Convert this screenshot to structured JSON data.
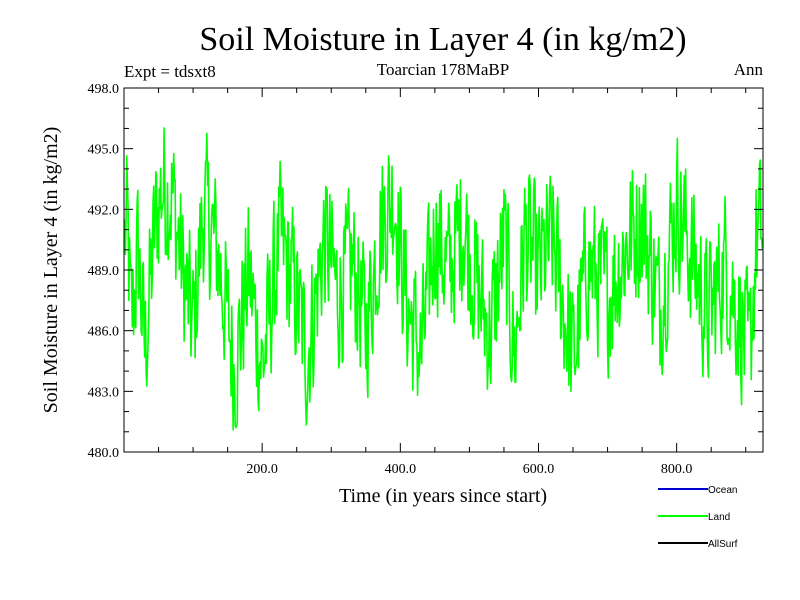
{
  "chart_data": {
    "type": "line",
    "title": "Soil Moisture in Layer 4 (in kg/m2)",
    "subtitle_left": "Expt = tdsxt8",
    "subtitle_center": "Toarcian 178MaBP",
    "subtitle_right": "Ann",
    "xlabel": "Time (in years since start)",
    "ylabel": "Soil Moisture in Layer 4 (in kg/m2)",
    "xlim": [
      0,
      925
    ],
    "ylim": [
      480.0,
      498.0
    ],
    "x_ticks": [
      200,
      400,
      600,
      800
    ],
    "x_tick_labels": [
      "200.0",
      "400.0",
      "600.0",
      "800.0"
    ],
    "y_ticks": [
      480,
      483,
      486,
      489,
      492,
      495,
      498
    ],
    "y_tick_labels": [
      "480.0",
      "483.0",
      "486.0",
      "489.0",
      "492.0",
      "495.0",
      "498.0"
    ],
    "legend": [
      {
        "name": "Ocean",
        "color": "#0000cc"
      },
      {
        "name": "Land",
        "color": "#00ff00"
      },
      {
        "name": "AllSurf",
        "color": "#000000"
      }
    ],
    "series": [
      {
        "name": "Land",
        "color": "#00ff00",
        "x_start": 1,
        "x_step": 1,
        "count": 924,
        "mean": 488.6,
        "min": 480.5,
        "max": 497.0,
        "anchor_points": [
          {
            "x": 5,
            "y": 493.0
          },
          {
            "x": 10,
            "y": 484.0
          },
          {
            "x": 20,
            "y": 491.0
          },
          {
            "x": 30,
            "y": 482.0
          },
          {
            "x": 45,
            "y": 493.5
          },
          {
            "x": 55,
            "y": 497.0
          },
          {
            "x": 70,
            "y": 496.0
          },
          {
            "x": 85,
            "y": 489.0
          },
          {
            "x": 100,
            "y": 484.0
          },
          {
            "x": 115,
            "y": 495.0
          },
          {
            "x": 135,
            "y": 491.0
          },
          {
            "x": 160,
            "y": 480.5
          },
          {
            "x": 180,
            "y": 489.0
          },
          {
            "x": 200,
            "y": 480.5
          },
          {
            "x": 225,
            "y": 492.0
          },
          {
            "x": 245,
            "y": 488.0
          },
          {
            "x": 265,
            "y": 481.5
          },
          {
            "x": 290,
            "y": 492.5
          },
          {
            "x": 310,
            "y": 487.0
          },
          {
            "x": 330,
            "y": 490.0
          },
          {
            "x": 350,
            "y": 484.0
          },
          {
            "x": 370,
            "y": 493.0
          },
          {
            "x": 390,
            "y": 496.5
          },
          {
            "x": 410,
            "y": 486.0
          },
          {
            "x": 430,
            "y": 481.5
          },
          {
            "x": 450,
            "y": 493.0
          },
          {
            "x": 470,
            "y": 489.0
          },
          {
            "x": 490,
            "y": 494.0
          },
          {
            "x": 510,
            "y": 488.0
          },
          {
            "x": 530,
            "y": 483.5
          },
          {
            "x": 550,
            "y": 492.0
          },
          {
            "x": 565,
            "y": 481.5
          },
          {
            "x": 580,
            "y": 492.5
          },
          {
            "x": 600,
            "y": 489.0
          },
          {
            "x": 620,
            "y": 492.0
          },
          {
            "x": 650,
            "y": 481.0
          },
          {
            "x": 670,
            "y": 490.0
          },
          {
            "x": 700,
            "y": 487.0
          },
          {
            "x": 730,
            "y": 492.0
          },
          {
            "x": 750,
            "y": 494.0
          },
          {
            "x": 775,
            "y": 486.0
          },
          {
            "x": 800,
            "y": 495.5
          },
          {
            "x": 820,
            "y": 491.0
          },
          {
            "x": 845,
            "y": 485.0
          },
          {
            "x": 870,
            "y": 490.0
          },
          {
            "x": 895,
            "y": 484.0
          },
          {
            "x": 905,
            "y": 481.0
          },
          {
            "x": 915,
            "y": 492.0
          },
          {
            "x": 924,
            "y": 493.0
          }
        ]
      }
    ]
  }
}
